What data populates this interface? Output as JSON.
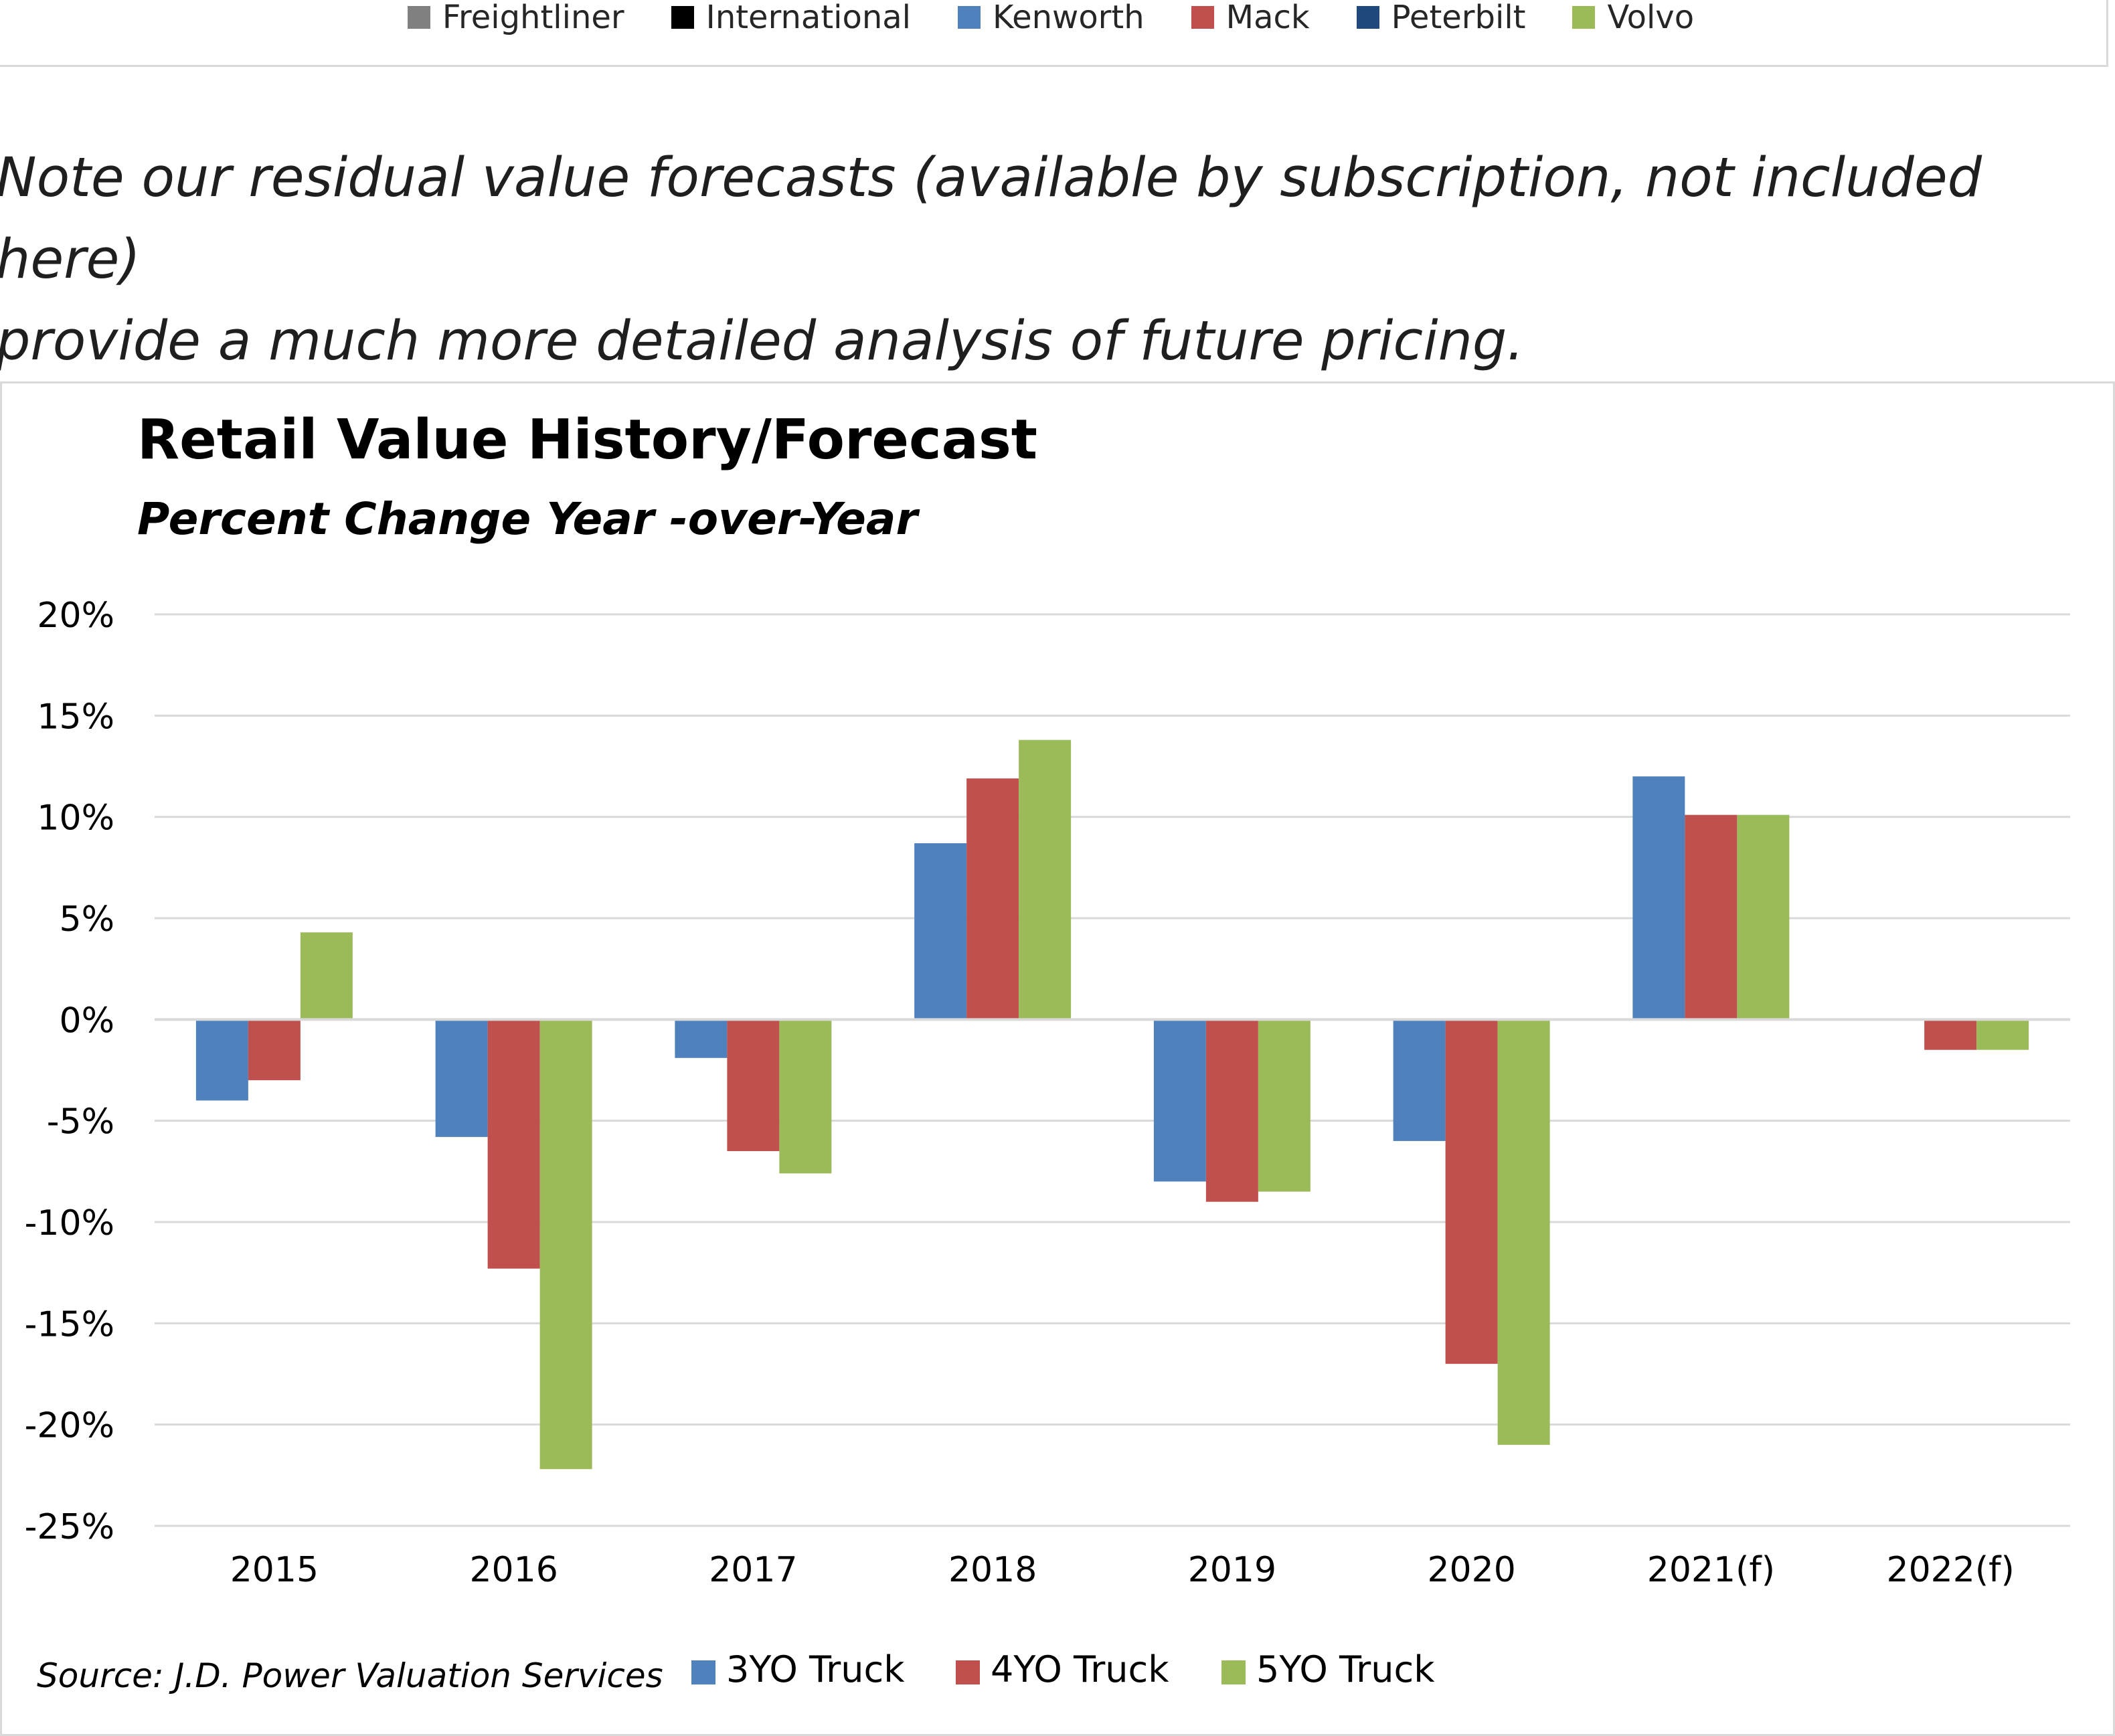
{
  "top_legend": {
    "items": [
      {
        "label": "Freightliner",
        "color": "#808080"
      },
      {
        "label": "International",
        "color": "#000000"
      },
      {
        "label": "Kenworth",
        "color": "#4f81bd"
      },
      {
        "label": "Mack",
        "color": "#c0504d"
      },
      {
        "label": "Peterbilt",
        "color": "#1f497d"
      },
      {
        "label": "Volvo",
        "color": "#9bbb59"
      }
    ]
  },
  "note": {
    "line1": "Note our residual value forecasts (available by subscription, not included here)",
    "line2": "provide a much more detailed analysis of future pricing."
  },
  "source": "Source: J.D. Power Valuation Services",
  "chart_data": {
    "type": "bar",
    "title": "Retail Value History/Forecast",
    "subtitle": "Percent Change Year -over-Year",
    "xlabel": "",
    "ylabel": "",
    "categories": [
      "2015",
      "2016",
      "2017",
      "2018",
      "2019",
      "2020",
      "2021(f)",
      "2022(f)"
    ],
    "yticks": [
      "20%",
      "15%",
      "10%",
      "5%",
      "0%",
      "-5%",
      "-10%",
      "-15%",
      "-20%",
      "-25%"
    ],
    "ylim": [
      -25,
      20
    ],
    "grid": true,
    "legend_position": "bottom",
    "series": [
      {
        "name": "3YO Truck",
        "color": "#4f81bd",
        "values": [
          -4,
          -5.8,
          -1.9,
          8.7,
          -8,
          -6,
          12,
          null
        ]
      },
      {
        "name": "4YO Truck",
        "color": "#c0504d",
        "values": [
          -3,
          -12.3,
          -6.5,
          11.9,
          -9,
          -17,
          10.1,
          -1.5
        ]
      },
      {
        "name": "5YO Truck",
        "color": "#9bbb59",
        "values": [
          4.3,
          -22.2,
          -7.6,
          13.8,
          -8.5,
          -21,
          10.1,
          -1.5
        ]
      }
    ]
  }
}
